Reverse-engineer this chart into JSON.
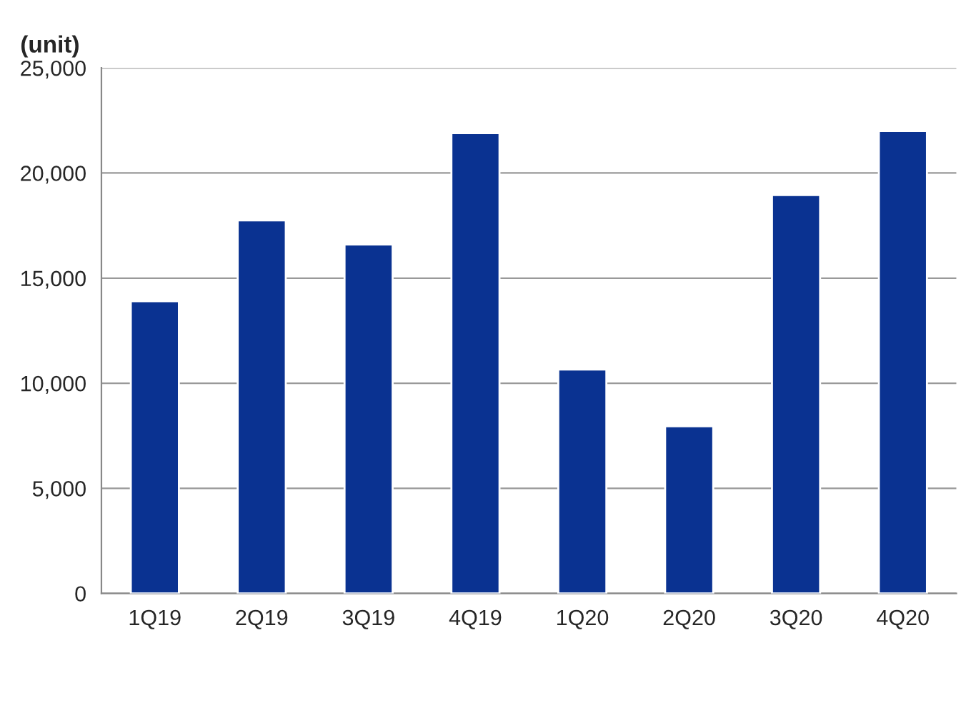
{
  "chart_data": {
    "type": "bar",
    "ylabel": "(unit)",
    "categories": [
      "1Q19",
      "2Q19",
      "3Q19",
      "4Q19",
      "1Q20",
      "2Q20",
      "3Q20",
      "4Q20"
    ],
    "series": [
      {
        "color": "#0a3291",
        "values": [
          13900,
          17750,
          16600,
          21900,
          10650,
          7950,
          18950,
          22000
        ]
      }
    ],
    "ylim": [
      0,
      25000
    ],
    "yticks": [
      {
        "value": 0,
        "label": "0"
      },
      {
        "value": 5000,
        "label": "5,000"
      },
      {
        "value": 10000,
        "label": "10,000"
      },
      {
        "value": 15000,
        "label": "15,000"
      },
      {
        "value": 20000,
        "label": "20,000"
      },
      {
        "value": 25000,
        "label": "25,000"
      }
    ],
    "grid": "y"
  }
}
